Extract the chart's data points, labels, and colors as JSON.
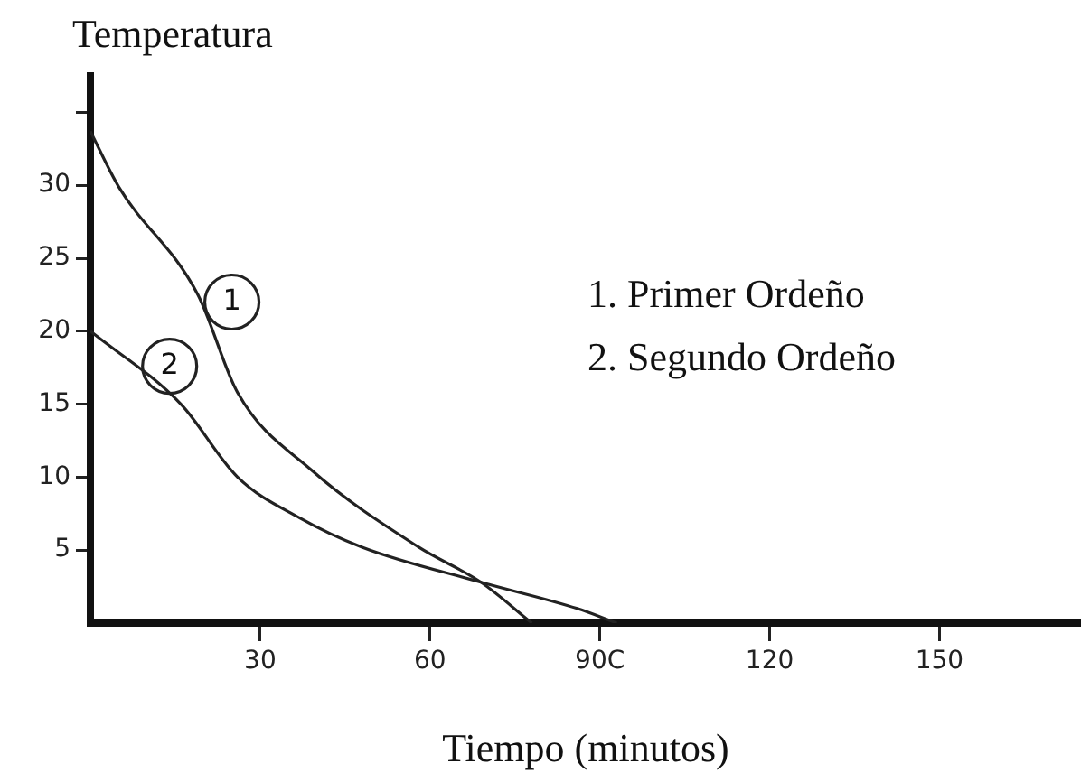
{
  "chart_data": {
    "type": "line",
    "ylabel": "Temperatura",
    "xlabel": "Tiempo (minutos)",
    "xlim": [
      0,
      175
    ],
    "xticks": [
      30,
      60,
      {
        "value": 90,
        "label": "90C"
      },
      120,
      150
    ],
    "ylim": [
      0,
      37.5
    ],
    "yticks": [
      5,
      10,
      15,
      20,
      25,
      30,
      {
        "value": 35,
        "label": null
      }
    ],
    "grid": false,
    "legend": false,
    "marker": "none",
    "line_style": "solid",
    "series": [
      {
        "color": "#222222",
        "x": [
          0,
          5,
          19,
          26,
          39,
          58,
          69,
          78
        ],
        "values": [
          33.7,
          29.9,
          22.5,
          15.8,
          10.5,
          5.2,
          2.8,
          0
        ]
      },
      {
        "color": "#222222",
        "x": [
          0,
          16,
          26,
          37,
          48,
          69,
          86,
          93
        ],
        "values": [
          20,
          15,
          10,
          7.2,
          5.2,
          2.8,
          1,
          0
        ]
      }
    ],
    "annotations": [
      {
        "text": "1",
        "x": 25,
        "y": 22
      },
      {
        "text": "2",
        "x": 14,
        "y": 17.6
      },
      "1. Primer Ordeño",
      "2. Segundo Ordeño"
    ]
  }
}
